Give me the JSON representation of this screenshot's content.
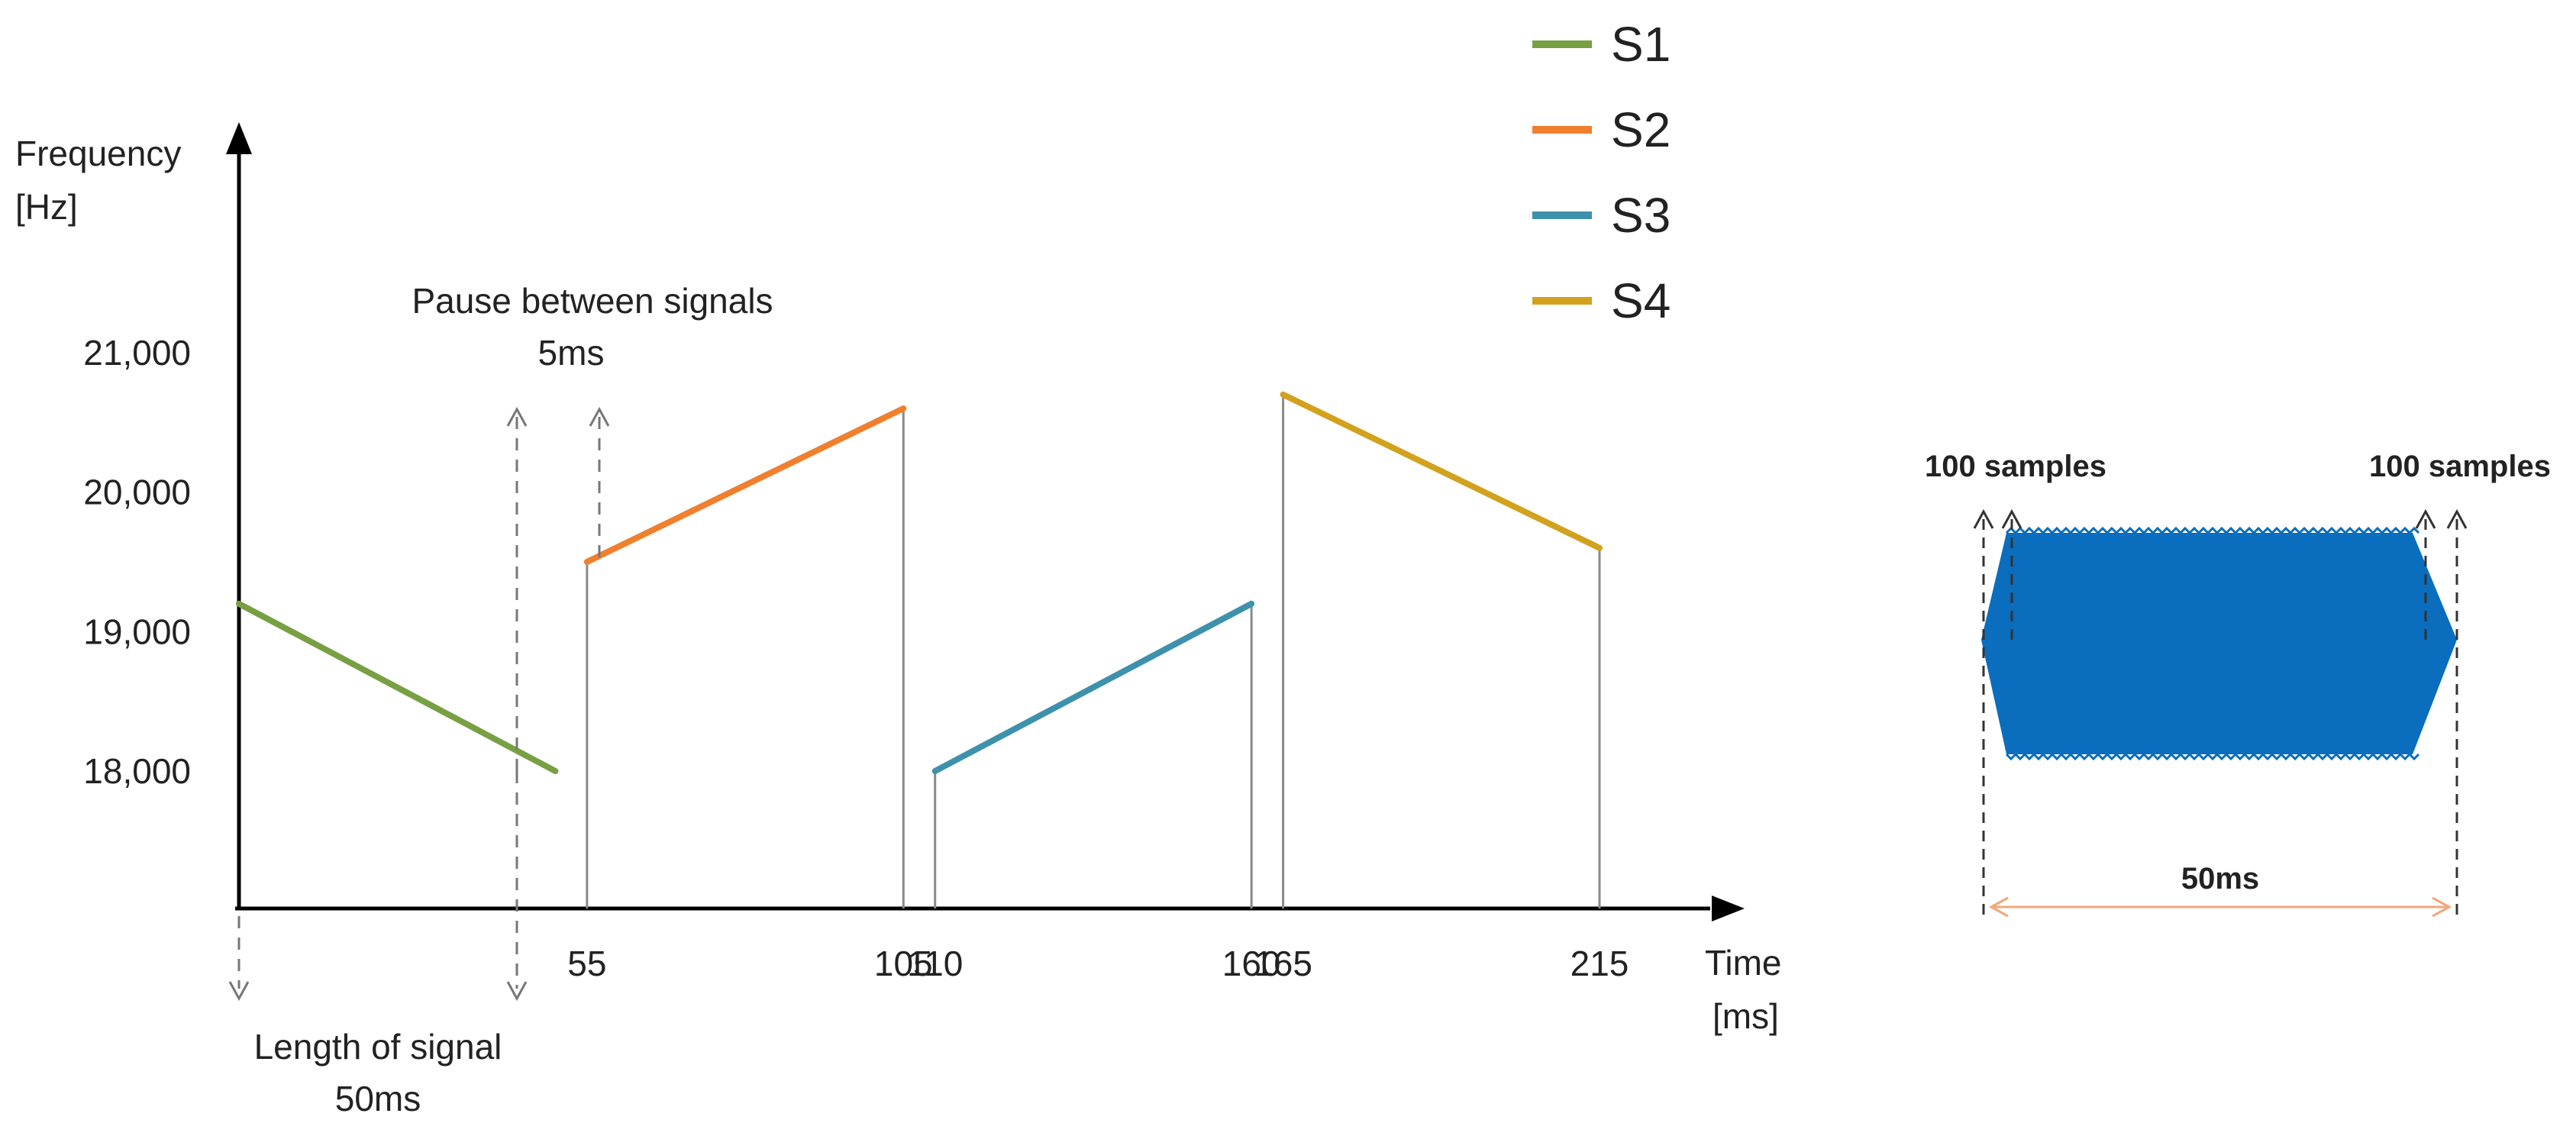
{
  "axes": {
    "y_label_line1": "Frequency",
    "y_label_line2": "[Hz]",
    "x_label_line1": "Time",
    "x_label_line2": "[ms]"
  },
  "chart_data": {
    "type": "line",
    "xlabel": "Time [ms]",
    "ylabel": "Frequency [Hz]",
    "xlim": [
      0,
      245
    ],
    "ylim": [
      17000,
      21700
    ],
    "x_ticks": [
      {
        "value": 55,
        "label": "55"
      },
      {
        "value": 105,
        "label": "105"
      },
      {
        "value": 110,
        "label": "110"
      },
      {
        "value": 160,
        "label": "160"
      },
      {
        "value": 165,
        "label": "165"
      },
      {
        "value": 215,
        "label": "215"
      }
    ],
    "y_ticks": [
      {
        "value": 18000,
        "label": "18,000"
      },
      {
        "value": 19000,
        "label": "19,000"
      },
      {
        "value": 20000,
        "label": "20,000"
      },
      {
        "value": 21000,
        "label": "21,000"
      }
    ],
    "series": [
      {
        "name": "S1",
        "color": "#77a043",
        "points": [
          [
            0,
            19200
          ],
          [
            50,
            18000
          ]
        ]
      },
      {
        "name": "S2",
        "color": "#f07f2e",
        "points": [
          [
            55,
            19500
          ],
          [
            105,
            20600
          ]
        ]
      },
      {
        "name": "S3",
        "color": "#3e91ad",
        "points": [
          [
            110,
            18000
          ],
          [
            160,
            19200
          ]
        ]
      },
      {
        "name": "S4",
        "color": "#d2a21e",
        "points": [
          [
            165,
            20700
          ],
          [
            215,
            19600
          ]
        ]
      }
    ],
    "legend": "top-right"
  },
  "annotations": {
    "pause_line1": "Pause between signals",
    "pause_line2": "5ms",
    "length_line1": "Length of signal",
    "length_line2": "50ms"
  },
  "waveform": {
    "color": "#0a6dbd",
    "ramp_left_label": "100 samples",
    "ramp_right_label": "100 samples",
    "duration_label": "50ms",
    "duration_color": "#f2a77a"
  }
}
